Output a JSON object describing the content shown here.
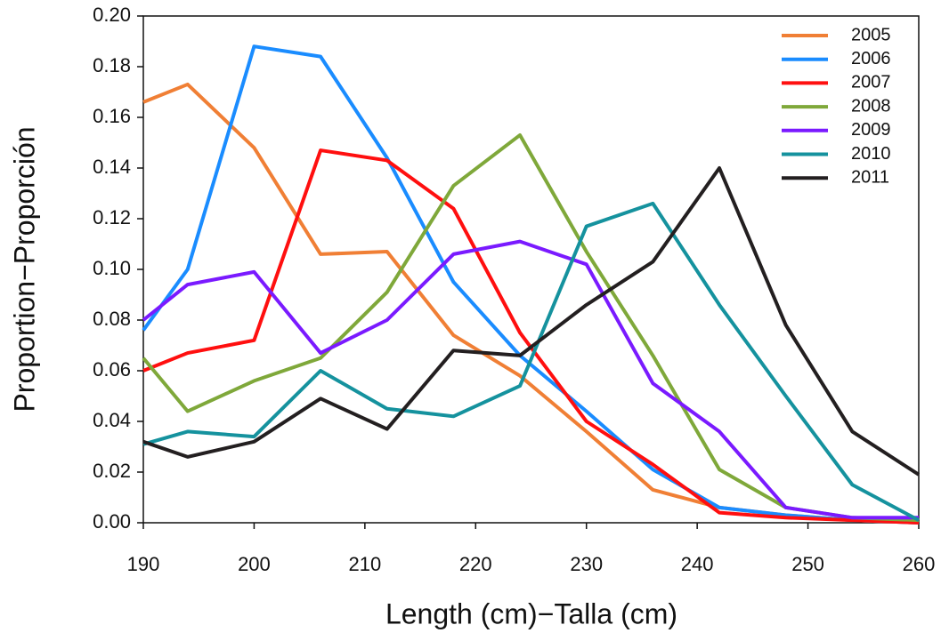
{
  "chart_data": {
    "type": "line",
    "xlabel": "Length (cm)−Talla (cm)",
    "ylabel": "Proportion−Proporción",
    "x": [
      190,
      194,
      200,
      206,
      212,
      218,
      224,
      230,
      236,
      242,
      248,
      254,
      260
    ],
    "series": [
      {
        "name": "2005",
        "color": "#f07f35",
        "values": [
          0.166,
          0.173,
          0.148,
          0.106,
          0.107,
          0.074,
          0.058,
          0.036,
          0.013,
          0.006,
          0.003,
          0.001,
          0.0
        ]
      },
      {
        "name": "2006",
        "color": "#1a8cff",
        "values": [
          0.076,
          0.1,
          0.188,
          0.184,
          0.144,
          0.095,
          0.066,
          0.044,
          0.021,
          0.006,
          0.003,
          0.001,
          0.0
        ]
      },
      {
        "name": "2007",
        "color": "#ff0f0f",
        "values": [
          0.06,
          0.067,
          0.072,
          0.147,
          0.143,
          0.124,
          0.075,
          0.04,
          0.023,
          0.004,
          0.002,
          0.001,
          0.0
        ]
      },
      {
        "name": "2008",
        "color": "#7fa83a",
        "values": [
          0.065,
          0.044,
          0.056,
          0.065,
          0.091,
          0.133,
          0.153,
          0.107,
          0.066,
          0.021,
          0.006,
          0.002,
          0.001
        ]
      },
      {
        "name": "2009",
        "color": "#7a1aff",
        "values": [
          0.08,
          0.094,
          0.099,
          0.067,
          0.08,
          0.106,
          0.111,
          0.102,
          0.055,
          0.036,
          0.006,
          0.002,
          0.002
        ]
      },
      {
        "name": "2010",
        "color": "#15929e",
        "values": [
          0.031,
          0.036,
          0.034,
          0.06,
          0.045,
          0.042,
          0.054,
          0.117,
          0.126,
          0.086,
          0.05,
          0.015,
          0.001
        ]
      },
      {
        "name": "2011",
        "color": "#231f20",
        "values": [
          0.032,
          0.026,
          0.032,
          0.049,
          0.037,
          0.068,
          0.066,
          0.086,
          0.103,
          0.14,
          0.078,
          0.036,
          0.019
        ]
      }
    ],
    "xlim": [
      190,
      260
    ],
    "xticks": [
      190,
      200,
      210,
      220,
      230,
      240,
      250,
      260
    ],
    "ylim": [
      0,
      0.2
    ],
    "yticks": [
      {
        "value": 0,
        "label": "0.00"
      },
      {
        "value": 0.02,
        "label": "0.02"
      },
      {
        "value": 0.04,
        "label": "0.04"
      },
      {
        "value": 0.06,
        "label": "0.06"
      },
      {
        "value": 0.08,
        "label": "0.08"
      },
      {
        "value": 0.1,
        "label": "0.10"
      },
      {
        "value": 0.12,
        "label": "0.12"
      },
      {
        "value": 0.14,
        "label": "0.14"
      },
      {
        "value": 0.16,
        "label": "0.16"
      },
      {
        "value": 0.18,
        "label": "0.18"
      },
      {
        "value": 0.2,
        "label": "0.20"
      }
    ],
    "legend": "upper right",
    "grid": false
  }
}
